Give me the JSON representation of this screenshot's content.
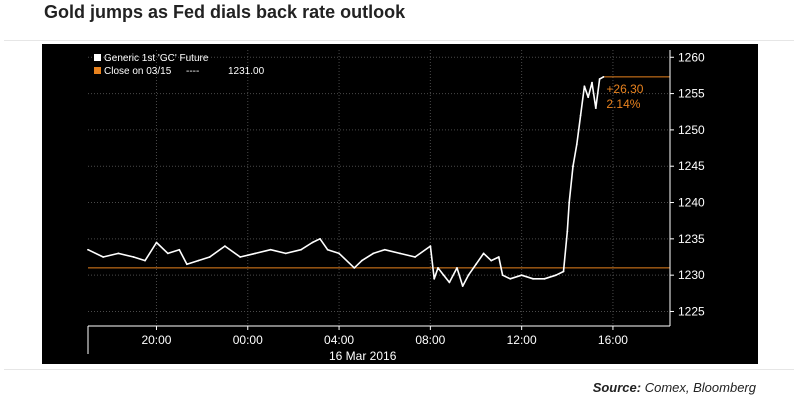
{
  "header": {
    "title": "Gold jumps as Fed dials back rate outlook"
  },
  "footer": {
    "source_label": "Source:",
    "source_text": "Comex, Bloomberg"
  },
  "colors": {
    "background": "#000000",
    "series": "#ffffff",
    "reference": "#e8821e",
    "axis": "#ffffff",
    "grid": "#4a4a4a"
  },
  "chart_data": {
    "type": "line",
    "title": "Gold jumps as Fed dials back rate outlook",
    "xlabel": "",
    "ylabel": "",
    "date_label": "16 Mar 2016",
    "xlim": [
      "2016-03-15 17:00",
      "2016-03-16 18:30"
    ],
    "ylim": [
      1223,
      1261
    ],
    "yticks": [
      1225,
      1230,
      1235,
      1240,
      1245,
      1250,
      1255,
      1260
    ],
    "xticks": [
      {
        "label": "20:00",
        "t": "2016-03-15 20:00"
      },
      {
        "label": "00:00",
        "t": "2016-03-16 00:00"
      },
      {
        "label": "04:00",
        "t": "2016-03-16 04:00"
      },
      {
        "label": "08:00",
        "t": "2016-03-16 08:00"
      },
      {
        "label": "12:00",
        "t": "2016-03-16 12:00"
      },
      {
        "label": "16:00",
        "t": "2016-03-16 16:00"
      }
    ],
    "grid": "horizontal",
    "legend_position": "top-left",
    "series": [
      {
        "name": "Generic 1st 'GC' Future",
        "x": [
          "2016-03-15 17:00",
          "2016-03-15 17:40",
          "2016-03-15 18:20",
          "2016-03-15 19:00",
          "2016-03-15 19:30",
          "2016-03-15 20:00",
          "2016-03-15 20:30",
          "2016-03-15 21:00",
          "2016-03-15 21:20",
          "2016-03-15 21:50",
          "2016-03-15 22:20",
          "2016-03-15 23:00",
          "2016-03-15 23:40",
          "2016-03-16 00:20",
          "2016-03-16 01:00",
          "2016-03-16 01:40",
          "2016-03-16 02:20",
          "2016-03-16 02:50",
          "2016-03-16 03:10",
          "2016-03-16 03:30",
          "2016-03-16 04:00",
          "2016-03-16 04:40",
          "2016-03-16 05:00",
          "2016-03-16 05:30",
          "2016-03-16 06:00",
          "2016-03-16 06:40",
          "2016-03-16 07:20",
          "2016-03-16 08:00",
          "2016-03-16 08:10",
          "2016-03-16 08:20",
          "2016-03-16 08:35",
          "2016-03-16 08:50",
          "2016-03-16 09:10",
          "2016-03-16 09:25",
          "2016-03-16 09:40",
          "2016-03-16 10:00",
          "2016-03-16 10:20",
          "2016-03-16 10:40",
          "2016-03-16 11:00",
          "2016-03-16 11:10",
          "2016-03-16 11:30",
          "2016-03-16 12:00",
          "2016-03-16 12:30",
          "2016-03-16 13:00",
          "2016-03-16 13:30",
          "2016-03-16 13:50",
          "2016-03-16 14:00",
          "2016-03-16 14:05",
          "2016-03-16 14:15",
          "2016-03-16 14:25",
          "2016-03-16 14:35",
          "2016-03-16 14:45",
          "2016-03-16 14:55",
          "2016-03-16 15:05",
          "2016-03-16 15:15",
          "2016-03-16 15:25",
          "2016-03-16 15:35"
        ],
        "y": [
          1233.5,
          1232.5,
          1233.0,
          1232.5,
          1232.0,
          1234.5,
          1233.0,
          1233.5,
          1231.5,
          1232.0,
          1232.5,
          1234.0,
          1232.5,
          1233.0,
          1233.5,
          1233.0,
          1233.5,
          1234.5,
          1235.0,
          1233.5,
          1233.0,
          1231.0,
          1232.0,
          1233.0,
          1233.5,
          1233.0,
          1232.5,
          1234.0,
          1229.5,
          1231.0,
          1230.0,
          1229.0,
          1231.0,
          1228.5,
          1230.0,
          1231.5,
          1233.0,
          1232.0,
          1232.5,
          1230.0,
          1229.5,
          1230.0,
          1229.5,
          1229.5,
          1230.0,
          1230.5,
          1236.0,
          1240.0,
          1245.0,
          1248.0,
          1252.0,
          1256.0,
          1254.5,
          1256.5,
          1253.0,
          1257.0,
          1257.3
        ]
      },
      {
        "name": "Close on 03/15",
        "value_label": "1231.00",
        "value": 1231.0
      }
    ],
    "annotations": [
      {
        "text": "+26.30",
        "color": "#e8821e"
      },
      {
        "text": "2.14%",
        "color": "#e8821e"
      }
    ]
  }
}
